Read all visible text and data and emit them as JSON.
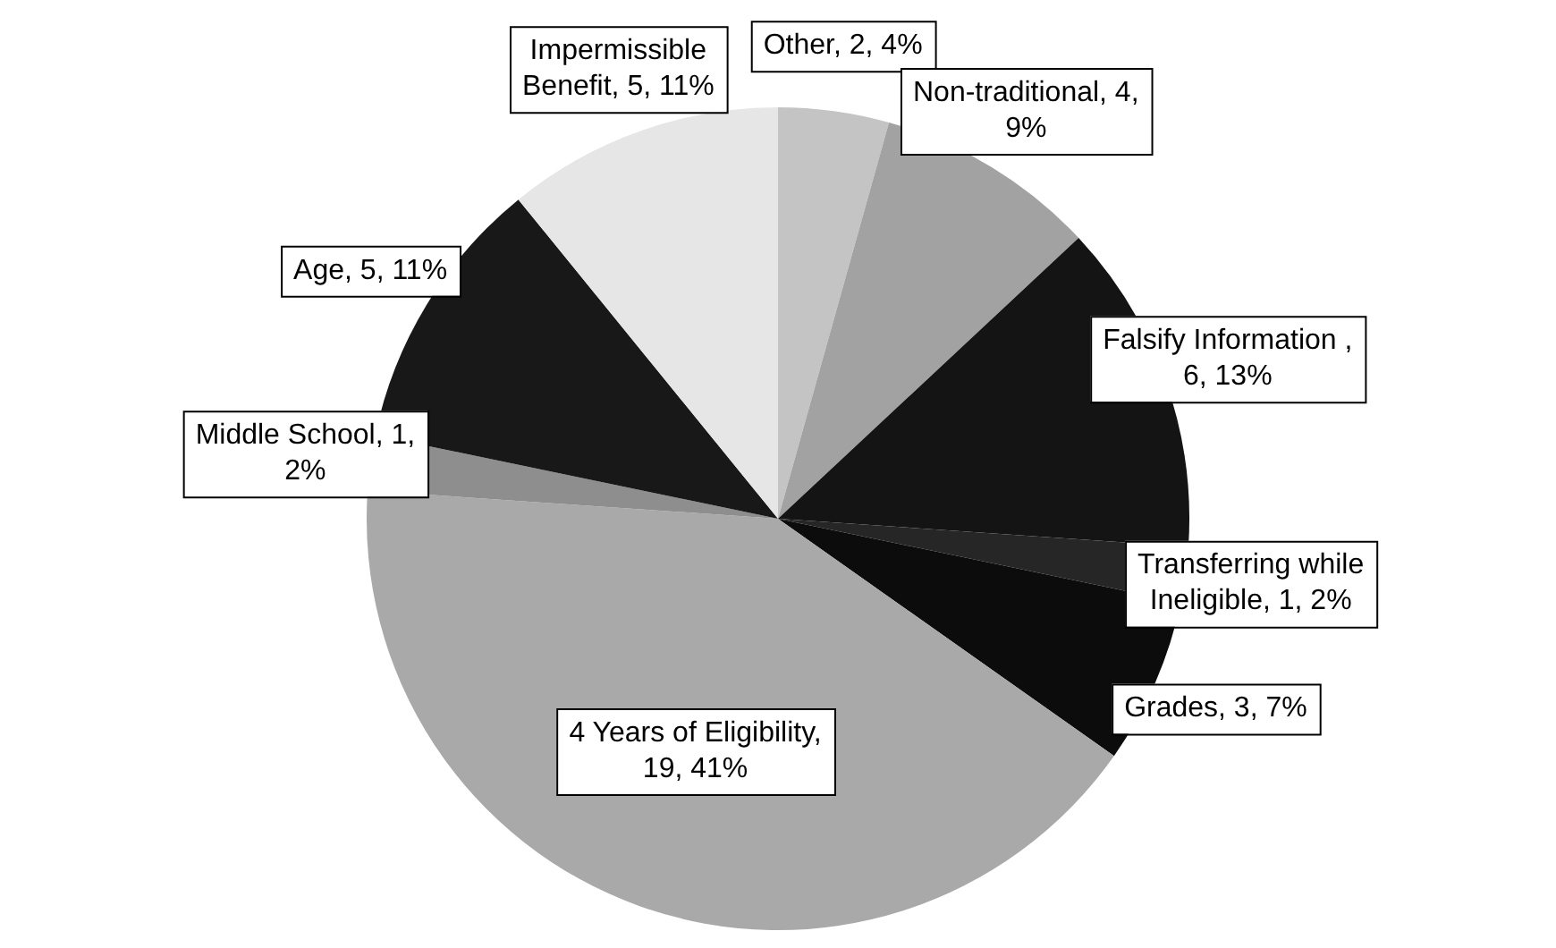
{
  "chart_data": {
    "type": "pie",
    "categories": [
      "Other",
      "Non-traditional",
      "Falsify Information ",
      "Transferring while Ineligible",
      "Grades",
      "4 Years of Eligibility",
      "Middle School",
      "Age",
      "Impermissible Benefit"
    ],
    "values": [
      2,
      4,
      6,
      1,
      3,
      19,
      1,
      5,
      5
    ],
    "value_labels": [
      ", 2, 4%",
      ", 4, 9%",
      ", 6, 13%",
      ", 1, 2%",
      ", 3, 7%",
      ", 19, 41%",
      ", 1, 2%",
      ", 5, 11%",
      ", 5, 11%"
    ],
    "colors": [
      "#c4c4c4",
      "#a2a2a2",
      "#141414",
      "#262626",
      "#0c0c0c",
      "#a9a9a9",
      "#8e8e8e",
      "#181818",
      "#e6e6e6"
    ],
    "legend": false
  }
}
